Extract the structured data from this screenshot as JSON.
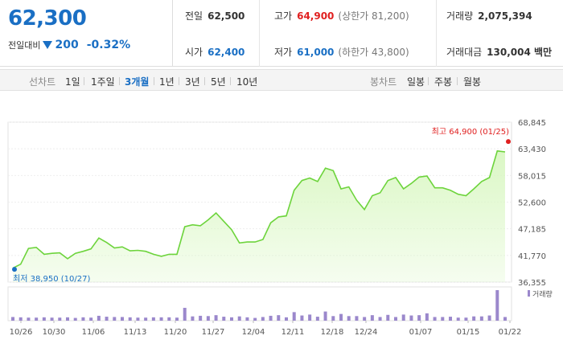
{
  "quote": {
    "current_price": "62,300",
    "change_label": "전일대비",
    "change_amount": "200",
    "change_percent": "-0.32%",
    "direction_icon": "down-triangle-icon"
  },
  "stats": {
    "prev_close": {
      "label": "전일",
      "value": "62,500"
    },
    "open": {
      "label": "시가",
      "value": "62,400"
    },
    "high": {
      "label": "고가",
      "value": "64,900",
      "sub": "(상한가 81,200)"
    },
    "low": {
      "label": "저가",
      "value": "61,000",
      "sub": "(하한가 43,800)"
    },
    "volume": {
      "label": "거래량",
      "value": "2,075,394"
    },
    "amount": {
      "label": "거래대금",
      "value": "130,004 백만"
    }
  },
  "tabs": {
    "line_chart_label": "선차트",
    "line_periods": [
      "1일",
      "1주일",
      "3개월",
      "1년",
      "3년",
      "5년",
      "10년"
    ],
    "active_period": "3개월",
    "candle_chart_label": "봉차트",
    "candle_periods": [
      "일봉",
      "주봉",
      "월봉"
    ]
  },
  "colors": {
    "price_blue": "#1a6fc4",
    "price_red": "#e02020",
    "line_green": "#6dd43c",
    "area_green": "#d9f7c2",
    "volume_purple": "#9b88cc"
  },
  "chart_data": {
    "type": "area",
    "x_ticks": [
      "10/26",
      "10/30",
      "11/06",
      "11/13",
      "11/20",
      "11/27",
      "12/04",
      "12/11",
      "12/18",
      "12/24",
      "01/07",
      "01/15",
      "01/22"
    ],
    "y_ticks": [
      "68,845",
      "63,430",
      "58,015",
      "52,600",
      "47,185",
      "41,770",
      "36,355"
    ],
    "ylim": [
      36355,
      68845
    ],
    "values": [
      39200,
      40000,
      43200,
      43400,
      42000,
      42200,
      42300,
      41100,
      42200,
      42600,
      43100,
      45300,
      44400,
      43300,
      43500,
      42700,
      42800,
      42600,
      42000,
      41600,
      42000,
      42000,
      47600,
      48000,
      47800,
      49000,
      50400,
      48700,
      47000,
      44300,
      44500,
      44500,
      45000,
      48400,
      49600,
      49800,
      55000,
      57000,
      57500,
      56800,
      59500,
      59000,
      55300,
      55700,
      53000,
      51100,
      53900,
      54500,
      57000,
      57600,
      55300,
      56400,
      57700,
      57900,
      55500,
      55500,
      55000,
      54200,
      53900,
      55300,
      56800,
      57600,
      63000,
      62800
    ],
    "volume_label": "거래량",
    "volume": [
      12,
      11,
      10,
      10,
      11,
      10,
      10,
      11,
      9,
      11,
      10,
      16,
      13,
      12,
      12,
      11,
      10,
      10,
      11,
      11,
      11,
      10,
      42,
      14,
      16,
      15,
      18,
      13,
      11,
      14,
      11,
      9,
      12,
      16,
      18,
      11,
      28,
      17,
      20,
      13,
      30,
      15,
      22,
      15,
      15,
      12,
      18,
      12,
      19,
      12,
      20,
      17,
      18,
      24,
      12,
      12,
      13,
      10,
      10,
      14,
      14,
      17,
      100,
      12
    ],
    "high_annotation": "최고 64,900 (01/25)",
    "low_annotation": "최저 38,950 (10/27)",
    "high_value": 64900,
    "low_value": 38950
  }
}
